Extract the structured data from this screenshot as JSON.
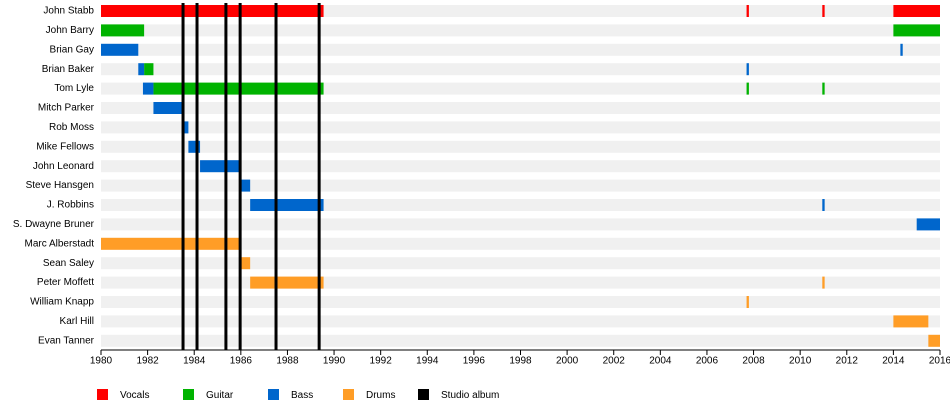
{
  "chart_data": {
    "type": "timeline",
    "categories": [
      "John Stabb",
      "John Barry",
      "Brian Gay",
      "Brian Baker",
      "Tom Lyle",
      "Mitch Parker",
      "Rob Moss",
      "Mike Fellows",
      "John Leonard",
      "Steve Hansgen",
      "J. Robbins",
      "S. Dwayne Bruner",
      "Marc Alberstadt",
      "Sean Saley",
      "Peter Moffett",
      "William Knapp",
      "Karl Hill",
      "Evan Tanner"
    ],
    "xlim": [
      1980,
      2016
    ],
    "xticks": [
      1980,
      1982,
      1984,
      1986,
      1988,
      1990,
      1992,
      1994,
      1996,
      1998,
      2000,
      2002,
      2004,
      2006,
      2008,
      2010,
      2012,
      2014,
      2016
    ],
    "series": [
      {
        "name": "Vocals",
        "color": "#ff0000",
        "bars": [
          {
            "member": "John Stabb",
            "start": 1980,
            "end": 1989.55
          },
          {
            "member": "John Stabb",
            "start": 2007.7,
            "end": 2007.8
          },
          {
            "member": "John Stabb",
            "start": 2010.95,
            "end": 2011.05
          },
          {
            "member": "John Stabb",
            "start": 2014,
            "end": 2016
          }
        ]
      },
      {
        "name": "Guitar",
        "color": "#00b300",
        "bars": [
          {
            "member": "John Barry",
            "start": 1980,
            "end": 1981.85
          },
          {
            "member": "John Barry",
            "start": 2014,
            "end": 2016
          },
          {
            "member": "Brian Baker",
            "start": 1981.85,
            "end": 1982.25
          },
          {
            "member": "Tom Lyle",
            "start": 1982.25,
            "end": 1989.55
          },
          {
            "member": "Tom Lyle",
            "start": 2007.7,
            "end": 2007.8
          },
          {
            "member": "Tom Lyle",
            "start": 2010.95,
            "end": 2011.05
          }
        ]
      },
      {
        "name": "Bass",
        "color": "#0066cc",
        "bars": [
          {
            "member": "Brian Gay",
            "start": 1980,
            "end": 1981.6
          },
          {
            "member": "Brian Gay",
            "start": 2014.3,
            "end": 2014.4
          },
          {
            "member": "Brian Baker",
            "start": 1981.6,
            "end": 1981.85
          },
          {
            "member": "Brian Baker",
            "start": 2007.7,
            "end": 2007.8
          },
          {
            "member": "Tom Lyle",
            "start": 1981.8,
            "end": 1982.25
          },
          {
            "member": "Mitch Parker",
            "start": 1982.25,
            "end": 1983.55
          },
          {
            "member": "Rob Moss",
            "start": 1983.55,
            "end": 1983.75
          },
          {
            "member": "Mike Fellows",
            "start": 1983.75,
            "end": 1984.25
          },
          {
            "member": "John Leonard",
            "start": 1984.25,
            "end": 1986
          },
          {
            "member": "Steve Hansgen",
            "start": 1986,
            "end": 1986.4
          },
          {
            "member": "J. Robbins",
            "start": 1986.4,
            "end": 1989.55
          },
          {
            "member": "J. Robbins",
            "start": 2010.95,
            "end": 2011.05
          },
          {
            "member": "S. Dwayne Bruner",
            "start": 2015,
            "end": 2016
          }
        ]
      },
      {
        "name": "Drums",
        "color": "#ff9d26",
        "bars": [
          {
            "member": "Marc Alberstadt",
            "start": 1980,
            "end": 1986
          },
          {
            "member": "Sean Saley",
            "start": 1986,
            "end": 1986.4
          },
          {
            "member": "Peter Moffett",
            "start": 1986.4,
            "end": 1989.55
          },
          {
            "member": "Peter Moffett",
            "start": 2010.95,
            "end": 2011.05
          },
          {
            "member": "William Knapp",
            "start": 2007.7,
            "end": 2007.8
          },
          {
            "member": "Karl Hill",
            "start": 2014,
            "end": 2015.5
          },
          {
            "member": "Evan Tanner",
            "start": 2015.5,
            "end": 2016
          }
        ]
      }
    ],
    "albums": {
      "name": "Studio album",
      "color": "#000000",
      "values": [
        1983.52,
        1984.12,
        1985.36,
        1985.97,
        1987.51,
        1989.36
      ]
    }
  }
}
